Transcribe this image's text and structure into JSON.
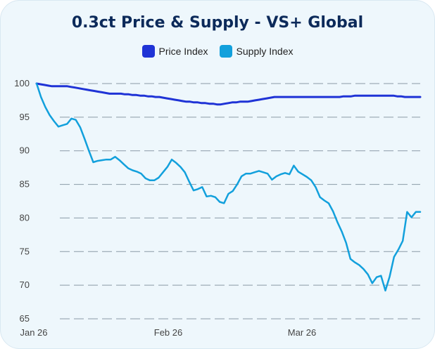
{
  "chart_data": {
    "type": "line",
    "title": "0.3ct Price & Supply - VS+ Global",
    "xlabel": "",
    "ylabel": "",
    "ylim": [
      65,
      100
    ],
    "yticks": [
      100,
      95,
      90,
      85,
      80,
      75,
      70,
      65
    ],
    "x_tick_labels": [
      "Jan 26",
      "Feb 26",
      "Mar 26"
    ],
    "legend_position": "top-center",
    "grid": true,
    "series": [
      {
        "name": "Price Index",
        "color": "#1f33d6",
        "values": [
          100,
          99.9,
          99.8,
          99.7,
          99.6,
          99.6,
          99.6,
          99.6,
          99.6,
          99.5,
          99.4,
          99.3,
          99.2,
          99.1,
          99.0,
          98.9,
          98.8,
          98.7,
          98.6,
          98.5,
          98.5,
          98.5,
          98.5,
          98.4,
          98.4,
          98.3,
          98.3,
          98.2,
          98.2,
          98.1,
          98.1,
          98.0,
          98.0,
          97.9,
          97.8,
          97.7,
          97.6,
          97.5,
          97.4,
          97.3,
          97.3,
          97.2,
          97.2,
          97.1,
          97.1,
          97.0,
          97.0,
          96.9,
          96.9,
          97.0,
          97.1,
          97.2,
          97.2,
          97.3,
          97.3,
          97.3,
          97.4,
          97.5,
          97.6,
          97.7,
          97.8,
          97.9,
          98.0,
          98.0,
          98.0,
          98.0,
          98.0,
          98.0,
          98.0,
          98.0,
          98.0,
          98.0,
          98.0,
          98.0,
          98.0,
          98.0,
          98.0,
          98.0,
          98.0,
          98.0,
          98.1,
          98.1,
          98.1,
          98.2,
          98.2,
          98.2,
          98.2,
          98.2,
          98.2,
          98.2,
          98.2,
          98.2,
          98.2,
          98.2,
          98.1,
          98.1,
          98.0,
          98.0,
          98.0,
          98.0,
          98.0
        ]
      },
      {
        "name": "Supply Index",
        "color": "#12a0dc",
        "values": [
          100,
          98,
          96.5,
          95.3,
          94.4,
          93.6,
          93.8,
          94.0,
          94.8,
          94.6,
          93.5,
          91.8,
          90.0,
          88.3,
          88.5,
          88.6,
          88.7,
          88.7,
          89.1,
          88.6,
          88.0,
          87.4,
          87.1,
          86.9,
          86.6,
          85.9,
          85.6,
          85.6,
          86.0,
          86.8,
          87.6,
          88.7,
          88.2,
          87.6,
          86.8,
          85.4,
          84.1,
          84.3,
          84.6,
          83.2,
          83.3,
          83.1,
          82.4,
          82.2,
          83.6,
          84.0,
          85.0,
          86.2,
          86.6,
          86.6,
          86.8,
          87.0,
          86.8,
          86.6,
          85.7,
          86.2,
          86.5,
          86.7,
          86.5,
          87.8,
          86.9,
          86.5,
          86.1,
          85.6,
          84.6,
          83.1,
          82.6,
          82.2,
          81.0,
          79.4,
          78.0,
          76.3,
          73.9,
          73.4,
          73.0,
          72.4,
          71.6,
          70.3,
          71.2,
          71.4,
          69.2,
          71.3,
          74.2,
          75.3,
          76.6,
          80.9,
          80.1,
          80.9,
          80.9
        ]
      }
    ]
  }
}
